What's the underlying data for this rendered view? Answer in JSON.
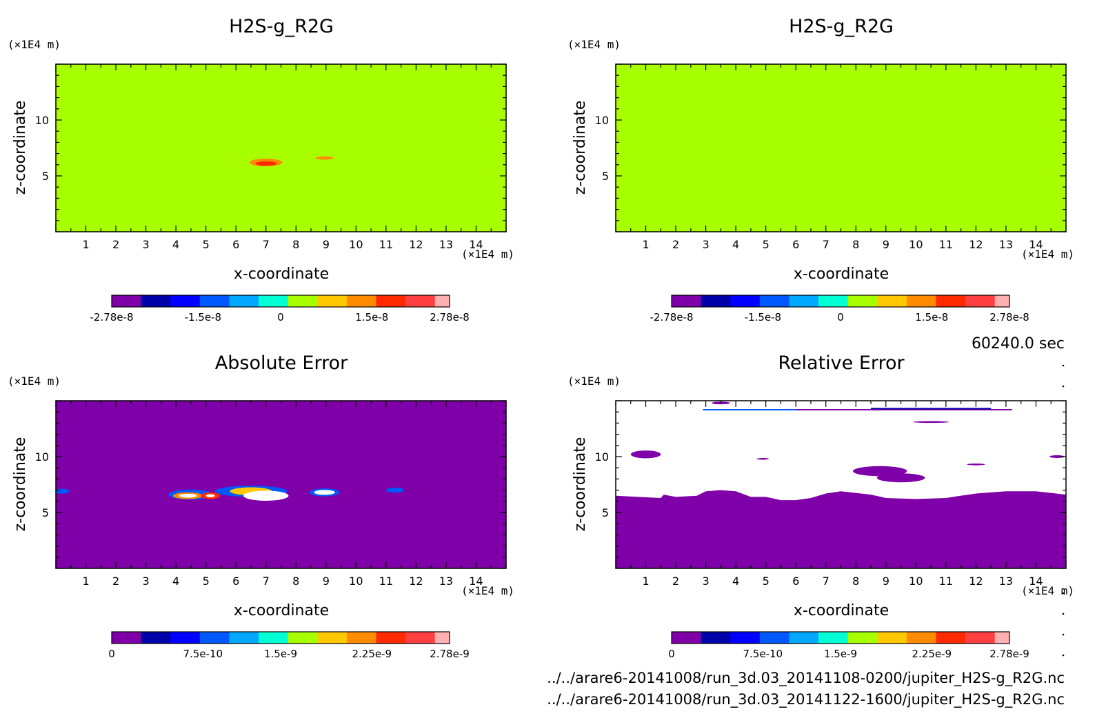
{
  "time_label": "60240.0 sec",
  "file_lines": [
    "../../arare6-20141008/run_3d.03_20141108-0200/jupiter_H2S-g_R2G.nc",
    "../../arare6-20141008/run_3d.03_20141122-1600/jupiter_H2S-g_R2G.nc"
  ],
  "chart_data": [
    {
      "type": "heatmap",
      "title": "H2S-g_R2G",
      "xlabel": "x-coordinate",
      "ylabel": "z-coordinate",
      "x_unit": "(×1E4 m)",
      "y_unit": "(×1E4 m)",
      "xlim": [
        0,
        15
      ],
      "ylim": [
        0,
        15
      ],
      "xticks": [
        "1",
        "2",
        "3",
        "4",
        "5",
        "6",
        "7",
        "8",
        "9",
        "10",
        "11",
        "12",
        "13",
        "14"
      ],
      "yticks": [
        "5",
        "10"
      ],
      "background": "#a8ff00",
      "features": [
        {
          "x": 7.0,
          "z": 6.2,
          "rx": 0.55,
          "rz": 0.35,
          "color": "#ff8c00",
          "level": 1.2e-08
        },
        {
          "x": 7.0,
          "z": 6.1,
          "rx": 0.35,
          "rz": 0.2,
          "color": "#ff2a00",
          "level": 2e-08
        },
        {
          "x": 8.95,
          "z": 6.6,
          "rx": 0.3,
          "rz": 0.15,
          "color": "#ff8c00",
          "level": 1.2e-08
        }
      ],
      "colorbar": {
        "colors": [
          "#7f00a8",
          "#0000a8",
          "#0000ff",
          "#0058ff",
          "#00a8ff",
          "#00ffd5",
          "#a8ff00",
          "#ffc800",
          "#ff8c00",
          "#ff2a00",
          "#ff4040",
          "#ffb0b0"
        ],
        "labels": [
          "-2.78e-8",
          "-1.5e-8",
          "0",
          "1.5e-8",
          "2.78e-8"
        ]
      }
    },
    {
      "type": "heatmap",
      "title": "H2S-g_R2G",
      "xlabel": "x-coordinate",
      "ylabel": "z-coordinate",
      "x_unit": "(×1E4 m)",
      "y_unit": "(×1E4 m)",
      "xlim": [
        0,
        15
      ],
      "ylim": [
        0,
        15
      ],
      "xticks": [
        "1",
        "2",
        "3",
        "4",
        "5",
        "6",
        "7",
        "8",
        "9",
        "10",
        "11",
        "12",
        "13",
        "14"
      ],
      "yticks": [
        "5",
        "10"
      ],
      "background": "#a8ff00",
      "features": [],
      "colorbar": {
        "colors": [
          "#7f00a8",
          "#0000a8",
          "#0000ff",
          "#0058ff",
          "#00a8ff",
          "#00ffd5",
          "#a8ff00",
          "#ffc800",
          "#ff8c00",
          "#ff2a00",
          "#ff4040",
          "#ffb0b0"
        ],
        "labels": [
          "-2.78e-8",
          "-1.5e-8",
          "0",
          "1.5e-8",
          "2.78e-8"
        ]
      }
    },
    {
      "type": "heatmap",
      "title": "Absolute Error",
      "xlabel": "x-coordinate",
      "ylabel": "z-coordinate",
      "x_unit": "(×1E4 m)",
      "y_unit": "(×1E4 m)",
      "xlim": [
        0,
        15
      ],
      "ylim": [
        0,
        15
      ],
      "xticks": [
        "1",
        "2",
        "3",
        "4",
        "5",
        "6",
        "7",
        "8",
        "9",
        "10",
        "11",
        "12",
        "13",
        "14"
      ],
      "yticks": [
        "5",
        "10"
      ],
      "background": "#7f00a8",
      "features": [
        {
          "x": 4.5,
          "z": 6.6,
          "rx": 0.75,
          "rz": 0.45,
          "color": "#0058ff",
          "level": 5e-10
        },
        {
          "x": 4.4,
          "z": 6.5,
          "rx": 0.5,
          "rz": 0.3,
          "color": "#ff8c00",
          "level": 2e-09
        },
        {
          "x": 4.4,
          "z": 6.5,
          "rx": 0.3,
          "rz": 0.17,
          "color": "#ffffff",
          "level": 2.8e-09
        },
        {
          "x": 5.15,
          "z": 6.5,
          "rx": 0.32,
          "rz": 0.3,
          "color": "#ff2a00",
          "level": 2.4e-09
        },
        {
          "x": 5.15,
          "z": 6.5,
          "rx": 0.15,
          "rz": 0.14,
          "color": "#ffffff",
          "level": 2.8e-09
        },
        {
          "x": 6.5,
          "z": 6.9,
          "rx": 1.2,
          "rz": 0.5,
          "color": "#0058ff",
          "level": 5e-10
        },
        {
          "x": 6.5,
          "z": 6.9,
          "rx": 0.7,
          "rz": 0.35,
          "color": "#ffc800",
          "level": 1.8e-09
        },
        {
          "x": 7.0,
          "z": 6.5,
          "rx": 0.75,
          "rz": 0.45,
          "color": "#ffffff",
          "level": 2.8e-09
        },
        {
          "x": 8.95,
          "z": 6.8,
          "rx": 0.5,
          "rz": 0.35,
          "color": "#0058ff",
          "level": 5e-10
        },
        {
          "x": 8.95,
          "z": 6.8,
          "rx": 0.35,
          "rz": 0.22,
          "color": "#ffffff",
          "level": 2.8e-09
        },
        {
          "x": 11.3,
          "z": 7.0,
          "rx": 0.3,
          "rz": 0.22,
          "color": "#0058ff",
          "level": 5e-10
        },
        {
          "x": 0.2,
          "z": 6.9,
          "rx": 0.25,
          "rz": 0.22,
          "color": "#0058ff",
          "level": 5e-10
        }
      ],
      "colorbar": {
        "colors": [
          "#7f00a8",
          "#0000a8",
          "#0000ff",
          "#0058ff",
          "#00a8ff",
          "#00ffd5",
          "#a8ff00",
          "#ffc800",
          "#ff8c00",
          "#ff2a00",
          "#ff4040",
          "#ffb0b0"
        ],
        "labels": [
          "0",
          "7.5e-10",
          "1.5e-9",
          "2.25e-9",
          "2.78e-9"
        ]
      }
    },
    {
      "type": "heatmap",
      "title": "Relative Error",
      "xlabel": "x-coordinate",
      "ylabel": "z-coordinate",
      "x_unit": "(×1E4 m)",
      "y_unit": "(×1E4 m)",
      "xlim": [
        0,
        15
      ],
      "ylim": [
        0,
        15
      ],
      "xticks": [
        "1",
        "2",
        "3",
        "4",
        "5",
        "6",
        "7",
        "8",
        "9",
        "10",
        "11",
        "12",
        "13",
        "14"
      ],
      "yticks": [
        "5",
        "10"
      ],
      "background": "#ffffff",
      "lower_region": {
        "color": "#7f00a8",
        "boundary": [
          [
            0,
            6.5
          ],
          [
            1.5,
            6.3
          ],
          [
            1.6,
            6.6
          ],
          [
            2.0,
            6.4
          ],
          [
            2.7,
            6.5
          ],
          [
            3.0,
            6.9
          ],
          [
            3.5,
            7.0
          ],
          [
            4.0,
            6.9
          ],
          [
            4.5,
            6.4
          ],
          [
            5.0,
            6.4
          ],
          [
            5.5,
            6.1
          ],
          [
            6.0,
            6.1
          ],
          [
            6.5,
            6.3
          ],
          [
            7.0,
            6.7
          ],
          [
            7.5,
            6.9
          ],
          [
            8.5,
            6.6
          ],
          [
            9.0,
            6.3
          ],
          [
            10.0,
            6.2
          ],
          [
            11.0,
            6.3
          ],
          [
            12.0,
            6.7
          ],
          [
            13.0,
            6.9
          ],
          [
            14.0,
            6.9
          ],
          [
            15.0,
            6.6
          ]
        ]
      },
      "features": [
        {
          "x": 1.0,
          "z": 10.2,
          "rx": 0.5,
          "rz": 0.35,
          "color": "#7f00a8",
          "level": 0
        },
        {
          "x": 8.8,
          "z": 8.7,
          "rx": 0.9,
          "rz": 0.45,
          "color": "#7f00a8",
          "level": 0
        },
        {
          "x": 9.5,
          "z": 8.1,
          "rx": 0.8,
          "rz": 0.4,
          "color": "#7f00a8",
          "level": 0
        },
        {
          "x": 14.7,
          "z": 10.0,
          "rx": 0.25,
          "rz": 0.12,
          "color": "#7f00a8",
          "level": 0
        },
        {
          "x": 10.5,
          "z": 13.1,
          "rx": 0.6,
          "rz": 0.08,
          "color": "#7f00a8",
          "level": 0
        },
        {
          "x": 3.5,
          "z": 14.8,
          "rx": 0.3,
          "rz": 0.12,
          "color": "#7f00a8",
          "level": 0
        },
        {
          "x": 4.9,
          "z": 9.8,
          "rx": 0.2,
          "rz": 0.08,
          "color": "#7f00a8",
          "level": 0
        },
        {
          "x": 12.0,
          "z": 9.3,
          "rx": 0.3,
          "rz": 0.08,
          "color": "#7f00a8",
          "level": 0
        }
      ],
      "top_lines": [
        {
          "x0": 2.9,
          "x1": 6.0,
          "z": 14.2,
          "color": "#0058ff"
        },
        {
          "x0": 6.0,
          "x1": 13.2,
          "z": 14.2,
          "color": "#7f00a8"
        },
        {
          "x0": 8.5,
          "x1": 12.5,
          "z": 14.3,
          "color": "#0000a8"
        }
      ],
      "colorbar": {
        "colors": [
          "#7f00a8",
          "#0000a8",
          "#0000ff",
          "#0058ff",
          "#00a8ff",
          "#00ffd5",
          "#a8ff00",
          "#ffc800",
          "#ff8c00",
          "#ff2a00",
          "#ff4040",
          "#ffb0b0"
        ],
        "labels": [
          "0",
          "7.5e-10",
          "1.5e-9",
          "2.25e-9",
          "2.78e-9"
        ]
      }
    }
  ]
}
